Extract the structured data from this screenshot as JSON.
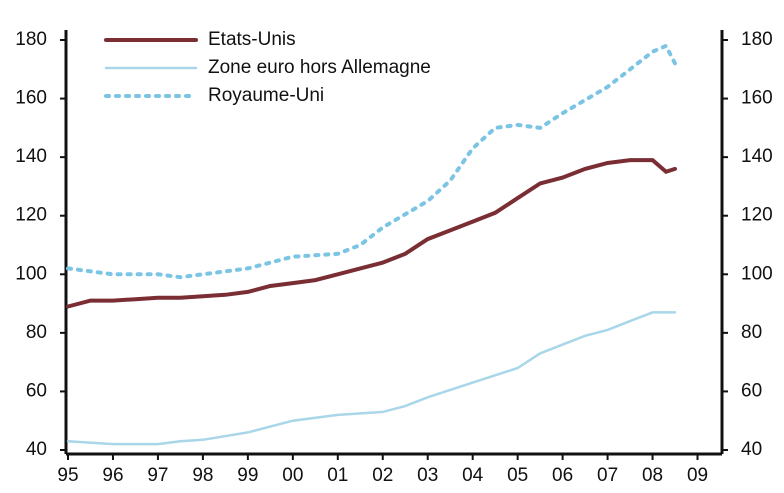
{
  "chart_data": {
    "type": "line",
    "xlim": [
      1995,
      2009.5
    ],
    "xticks": [
      {
        "value": 1995,
        "label": "95"
      },
      {
        "value": 1996,
        "label": "96"
      },
      {
        "value": 1997,
        "label": "97"
      },
      {
        "value": 1998,
        "label": "98"
      },
      {
        "value": 1999,
        "label": "99"
      },
      {
        "value": 2000,
        "label": "00"
      },
      {
        "value": 2001,
        "label": "01"
      },
      {
        "value": 2002,
        "label": "02"
      },
      {
        "value": 2003,
        "label": "03"
      },
      {
        "value": 2004,
        "label": "04"
      },
      {
        "value": 2005,
        "label": "05"
      },
      {
        "value": 2006,
        "label": "06"
      },
      {
        "value": 2007,
        "label": "07"
      },
      {
        "value": 2008,
        "label": "08"
      },
      {
        "value": 2009,
        "label": "09"
      }
    ],
    "ylim": [
      40,
      180
    ],
    "yticks": [
      40,
      60,
      80,
      100,
      120,
      140,
      160,
      180
    ],
    "y2lim": [
      40,
      180
    ],
    "y2ticks": [
      40,
      60,
      80,
      100,
      120,
      140,
      160,
      180
    ],
    "legend": "upper-left",
    "series": [
      {
        "name": "Etats-Unis",
        "color": "#7a2e34",
        "style": "solid",
        "x": [
          1995,
          1995.5,
          1996,
          1996.5,
          1997,
          1997.5,
          1998,
          1998.5,
          1999,
          1999.5,
          2000,
          2000.5,
          2001,
          2001.5,
          2002,
          2002.5,
          2003,
          2003.5,
          2004,
          2004.5,
          2005,
          2005.5,
          2006,
          2006.5,
          2007,
          2007.5,
          2008,
          2008.3,
          2008.5
        ],
        "values": [
          89,
          91,
          91,
          91.5,
          92,
          92,
          92.5,
          93,
          94,
          96,
          97,
          98,
          100,
          102,
          104,
          107,
          112,
          115,
          118,
          121,
          126,
          131,
          133,
          136,
          138,
          139,
          139,
          135,
          136
        ]
      },
      {
        "name": "Zone euro hors Allemagne",
        "color": "#a9d6e8",
        "style": "solid",
        "x": [
          1995,
          1996,
          1997,
          1997.5,
          1998,
          1999,
          2000,
          2001,
          2002,
          2002.5,
          2003,
          2004,
          2005,
          2005.5,
          2006,
          2006.5,
          2007,
          2007.5,
          2008,
          2008.5
        ],
        "values": [
          43,
          42,
          42,
          43,
          43.5,
          46,
          50,
          52,
          53,
          55,
          58,
          63,
          68,
          73,
          76,
          79,
          81,
          84,
          87,
          87
        ]
      },
      {
        "name": "Royaume-Uni",
        "color": "#7cc4e4",
        "style": "dotted",
        "x": [
          1995,
          1996,
          1997,
          1997.5,
          1998,
          1999,
          1999.5,
          2000,
          2001,
          2001.5,
          2002,
          2003,
          2003.5,
          2004,
          2004.5,
          2005,
          2005.5,
          2006,
          2007,
          2008,
          2008.3,
          2008.5
        ],
        "values": [
          102,
          100,
          100,
          99,
          100,
          102,
          104,
          106,
          107,
          110,
          116,
          125,
          132,
          143,
          150,
          151,
          150,
          155,
          164,
          176,
          178,
          172
        ]
      }
    ]
  }
}
